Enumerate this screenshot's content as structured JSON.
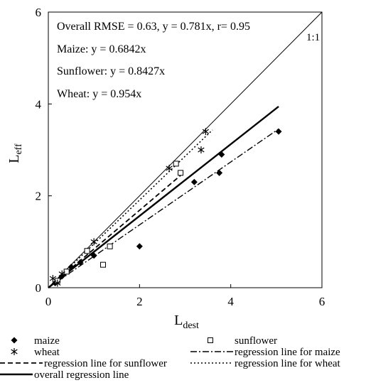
{
  "chart_data": {
    "type": "scatter",
    "xlabel": {
      "main": "L",
      "sub": "dest"
    },
    "ylabel": {
      "main": "L",
      "sub": "eff"
    },
    "xlim": [
      0,
      6
    ],
    "ylim": [
      0,
      6
    ],
    "xticks": [
      "0",
      "2",
      "4",
      "6"
    ],
    "yticks": [
      "0",
      "2",
      "4",
      "6"
    ],
    "grid": false,
    "annotations": [
      "Overall RMSE  = 0.63, y = 0.781x,  r= 0.95",
      "Maize: y = 0.6842x",
      "Sunflower: y = 0.8427x",
      "Wheat: y = 0.954x"
    ],
    "one_to_one_label": "1:1",
    "series": [
      {
        "name": "maize",
        "marker": "diamond",
        "points": [
          [
            0.15,
            0.1
          ],
          [
            0.3,
            0.25
          ],
          [
            0.5,
            0.45
          ],
          [
            0.7,
            0.55
          ],
          [
            1.0,
            0.7
          ],
          [
            2.0,
            0.9
          ],
          [
            3.2,
            2.3
          ],
          [
            3.75,
            2.5
          ],
          [
            3.8,
            2.9
          ],
          [
            5.05,
            3.4
          ]
        ]
      },
      {
        "name": "sunflower",
        "marker": "square",
        "points": [
          [
            0.2,
            0.15
          ],
          [
            0.4,
            0.35
          ],
          [
            0.85,
            0.8
          ],
          [
            1.2,
            0.5
          ],
          [
            1.35,
            0.9
          ],
          [
            2.8,
            2.7
          ],
          [
            2.9,
            2.5
          ]
        ]
      },
      {
        "name": "wheat",
        "marker": "asterisk",
        "points": [
          [
            0.1,
            0.2
          ],
          [
            0.2,
            0.1
          ],
          [
            0.3,
            0.3
          ],
          [
            1.0,
            1.0
          ],
          [
            2.65,
            2.6
          ],
          [
            3.35,
            3.0
          ],
          [
            3.45,
            3.4
          ]
        ]
      }
    ],
    "lines": [
      {
        "name": "1:1",
        "slope": 1.0,
        "x_end": 6.0,
        "style": "solid-thin"
      },
      {
        "name": "overall regression line",
        "slope": 0.781,
        "x_end": 5.05,
        "style": "solid-thick"
      },
      {
        "name": "regression line for maize",
        "slope": 0.6842,
        "x_end": 5.05,
        "style": "dashdot"
      },
      {
        "name": "regression line for sunflower",
        "slope": 0.8427,
        "x_end": 2.9,
        "style": "dashed"
      },
      {
        "name": "regression line for wheat",
        "slope": 0.954,
        "x_end": 3.6,
        "style": "dotted"
      }
    ],
    "legend": {
      "placement": "bottom",
      "items": [
        {
          "label": "maize",
          "kind": "marker",
          "marker": "diamond"
        },
        {
          "label": "sunflower",
          "kind": "marker",
          "marker": "square"
        },
        {
          "label": "wheat",
          "kind": "marker",
          "marker": "asterisk"
        },
        {
          "label": "regression line for maize",
          "kind": "line",
          "style": "dashdot"
        },
        {
          "label": "regression line for sunflower",
          "kind": "line",
          "style": "dashed"
        },
        {
          "label": "regression line for wheat",
          "kind": "line",
          "style": "dotted"
        },
        {
          "label": "overall regression line",
          "kind": "line",
          "style": "solid-thick"
        }
      ]
    }
  }
}
